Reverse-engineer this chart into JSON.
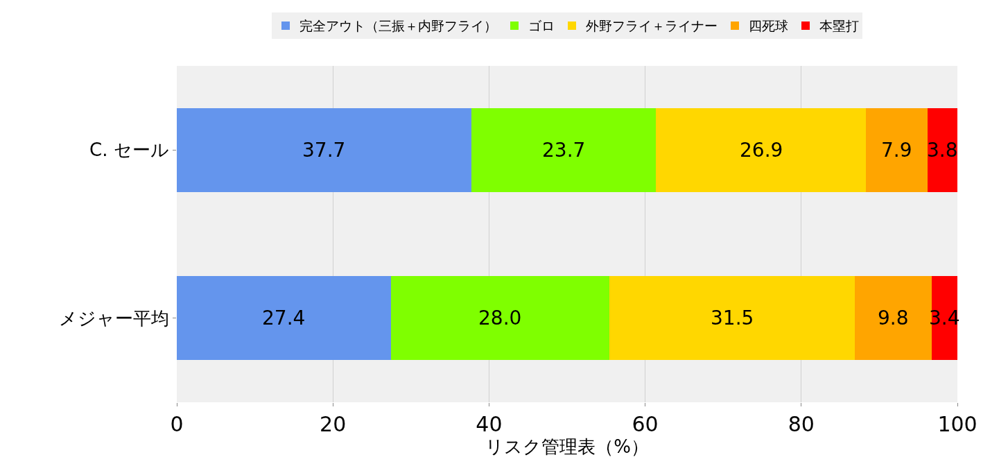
{
  "chart_data": {
    "type": "bar",
    "orientation": "horizontal",
    "stacked": true,
    "categories": [
      "C. セール",
      "メジャー平均"
    ],
    "xlabel": "リスク管理表（%）",
    "xlim": [
      0,
      100
    ],
    "xticks": [
      0,
      20,
      40,
      60,
      80,
      100
    ],
    "grid": "x",
    "legend": "top",
    "series": [
      {
        "name": "完全アウト（三振＋内野フライ）",
        "color": "#6495ed",
        "values": [
          37.7,
          27.4
        ],
        "value_labels": [
          "37.7",
          "27.4"
        ]
      },
      {
        "name": "ゴロ",
        "color": "#7fff00",
        "values": [
          23.7,
          28.0
        ],
        "value_labels": [
          "23.7",
          "28.0"
        ]
      },
      {
        "name": "外野フライ＋ライナー",
        "color": "#ffd700",
        "values": [
          26.9,
          31.5
        ],
        "value_labels": [
          "26.9",
          "31.5"
        ]
      },
      {
        "name": "四死球",
        "color": "#ffa500",
        "values": [
          7.9,
          9.8
        ],
        "value_labels": [
          "7.9",
          "9.8"
        ]
      },
      {
        "name": "本塁打",
        "color": "#ff0000",
        "values": [
          3.8,
          3.4
        ],
        "value_labels": [
          "3.8",
          "3.4"
        ]
      }
    ]
  }
}
